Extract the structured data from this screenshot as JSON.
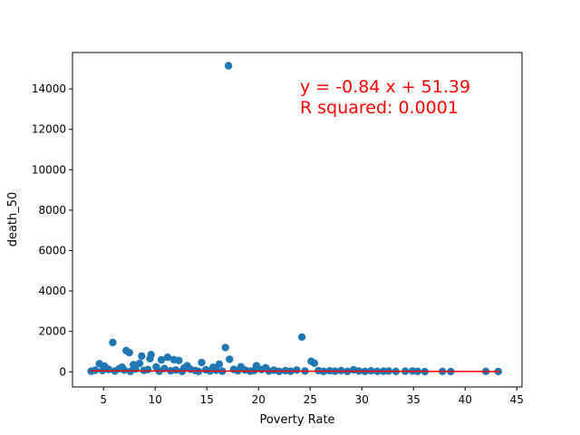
{
  "chart_data": {
    "type": "scatter",
    "title": "",
    "xlabel": "Poverty Rate",
    "ylabel": "death_50",
    "xlim": [
      2.0,
      45.5
    ],
    "ylim": [
      -750,
      15800
    ],
    "xticks": [
      5,
      10,
      15,
      20,
      25,
      30,
      35,
      40,
      45
    ],
    "yticks": [
      0,
      2000,
      4000,
      6000,
      8000,
      10000,
      12000,
      14000
    ],
    "grid": false,
    "point_color": "#1f77b4",
    "regression": {
      "slope": -0.84,
      "intercept": 51.39,
      "color": "#ff0000",
      "x_range": [
        3.7,
        43.4
      ]
    },
    "annotation": {
      "line1": "y = -0.84 x + 51.39",
      "line2": "R squared: 0.0001",
      "color": "#ff0000"
    },
    "points": [
      [
        17.1,
        15150
      ],
      [
        24.2,
        1720
      ],
      [
        5.9,
        1450
      ],
      [
        16.8,
        1200
      ],
      [
        7.2,
        1050
      ],
      [
        7.5,
        950
      ],
      [
        9.6,
        850
      ],
      [
        8.7,
        780
      ],
      [
        11.2,
        720
      ],
      [
        9.5,
        650
      ],
      [
        17.2,
        620
      ],
      [
        11.8,
        600
      ],
      [
        10.6,
        590
      ],
      [
        12.3,
        560
      ],
      [
        25.1,
        520
      ],
      [
        25.4,
        430
      ],
      [
        14.5,
        460
      ],
      [
        4.6,
        400
      ],
      [
        8.5,
        420
      ],
      [
        16.2,
        380
      ],
      [
        19.8,
        300
      ],
      [
        7.9,
        350
      ],
      [
        13.1,
        300
      ],
      [
        5.1,
        280
      ],
      [
        18.3,
        250
      ],
      [
        10.1,
        240
      ],
      [
        15.6,
        220
      ],
      [
        6.8,
        230
      ],
      [
        20.7,
        200
      ],
      [
        12.8,
        190
      ],
      [
        3.8,
        30
      ],
      [
        4.2,
        80
      ],
      [
        4.9,
        60
      ],
      [
        5.5,
        120
      ],
      [
        6.1,
        40
      ],
      [
        6.5,
        150
      ],
      [
        7.0,
        90
      ],
      [
        7.6,
        20
      ],
      [
        8.1,
        140
      ],
      [
        8.9,
        70
      ],
      [
        9.3,
        110
      ],
      [
        10.4,
        30
      ],
      [
        10.9,
        160
      ],
      [
        11.5,
        50
      ],
      [
        12.0,
        90
      ],
      [
        12.6,
        20
      ],
      [
        13.4,
        130
      ],
      [
        13.9,
        60
      ],
      [
        14.2,
        20
      ],
      [
        14.9,
        100
      ],
      [
        15.3,
        40
      ],
      [
        15.9,
        80
      ],
      [
        16.5,
        30
      ],
      [
        17.6,
        120
      ],
      [
        18.0,
        50
      ],
      [
        18.7,
        90
      ],
      [
        19.2,
        30
      ],
      [
        19.6,
        70
      ],
      [
        20.3,
        110
      ],
      [
        21.0,
        40
      ],
      [
        21.5,
        80
      ],
      [
        22.0,
        20
      ],
      [
        22.6,
        60
      ],
      [
        23.1,
        30
      ],
      [
        23.7,
        90
      ],
      [
        24.5,
        40
      ],
      [
        25.8,
        60
      ],
      [
        26.3,
        20
      ],
      [
        26.9,
        50
      ],
      [
        27.4,
        30
      ],
      [
        28.0,
        60
      ],
      [
        28.6,
        20
      ],
      [
        29.2,
        100
      ],
      [
        29.7,
        40
      ],
      [
        30.3,
        20
      ],
      [
        30.9,
        50
      ],
      [
        31.5,
        20
      ],
      [
        32.1,
        30
      ],
      [
        32.6,
        40
      ],
      [
        33.3,
        20
      ],
      [
        34.2,
        30
      ],
      [
        34.9,
        40
      ],
      [
        35.4,
        20
      ],
      [
        36.1,
        10
      ],
      [
        37.8,
        20
      ],
      [
        38.6,
        10
      ],
      [
        42.0,
        20
      ],
      [
        43.2,
        15
      ]
    ]
  }
}
